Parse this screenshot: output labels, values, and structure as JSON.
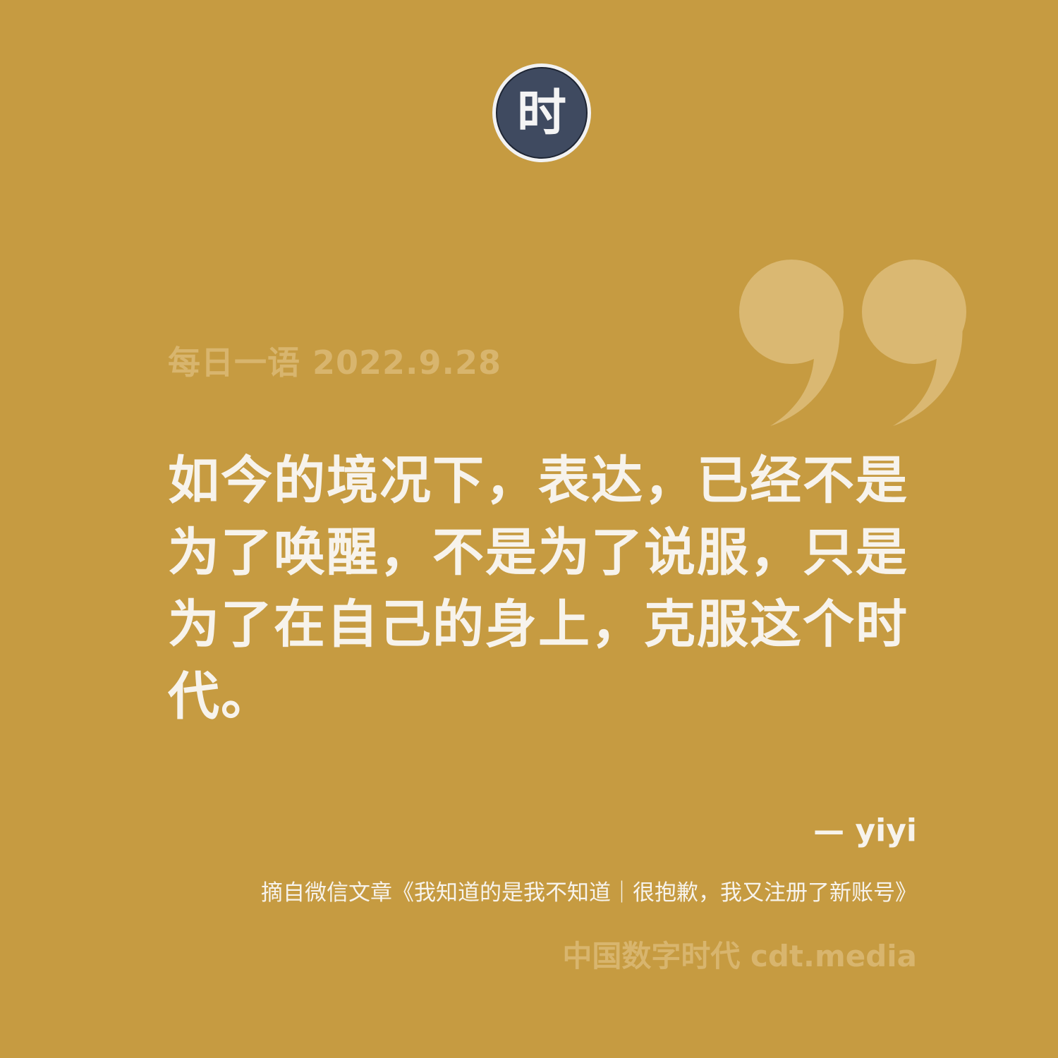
{
  "logo": {
    "icon": "cdt-seal-logo-icon",
    "text": "时",
    "color": "#3F4A60"
  },
  "decoration": {
    "icon": "closing-quote-icon",
    "color": "#DAB872"
  },
  "header": {
    "date_line": "每日一语 2022.9.28"
  },
  "quote": {
    "text": "如今的境况下，表达，已经不是为了唤醒，不是为了说服，只是为了在自己的身上，克服这个时代。"
  },
  "attribution": {
    "author": "— yiyi",
    "source": "摘自微信文章《我知道的是我不知道｜很抱歉，我又注册了新账号》"
  },
  "footer": {
    "brand": "中国数字时代 cdt.media"
  },
  "colors": {
    "background": "#C69B41",
    "text_primary": "#F7F3EC",
    "text_muted": "#D8B56E"
  }
}
